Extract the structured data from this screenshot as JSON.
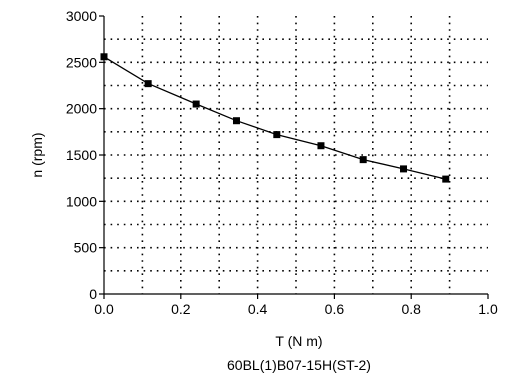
{
  "chart_data": {
    "type": "line",
    "title": "",
    "subtitle": "60BL(1)B07-15H(ST-2)",
    "xlabel": "T (N m)",
    "ylabel": "n (rpm)",
    "xlim": [
      0.0,
      1.0
    ],
    "ylim": [
      0,
      3000
    ],
    "x_ticks": [
      0.0,
      0.2,
      0.4,
      0.6,
      0.8,
      1.0
    ],
    "x_tick_labels": [
      "0.0",
      "0.2",
      "0.4",
      "0.6",
      "0.8",
      "1.0"
    ],
    "y_ticks": [
      0,
      500,
      1000,
      1500,
      2000,
      2500,
      3000
    ],
    "y_tick_labels": [
      "0",
      "500",
      "1000",
      "1500",
      "2000",
      "2500",
      "3000"
    ],
    "grid": true,
    "grid_style": "dotted",
    "x_grid_step": 0.1,
    "y_grid_step": 250,
    "series": [
      {
        "marker": "square",
        "color": "#000000",
        "x": [
          0.0,
          0.115,
          0.24,
          0.345,
          0.45,
          0.565,
          0.675,
          0.78,
          0.89
        ],
        "y": [
          2560,
          2270,
          2050,
          1870,
          1720,
          1600,
          1450,
          1350,
          1240
        ]
      }
    ]
  }
}
